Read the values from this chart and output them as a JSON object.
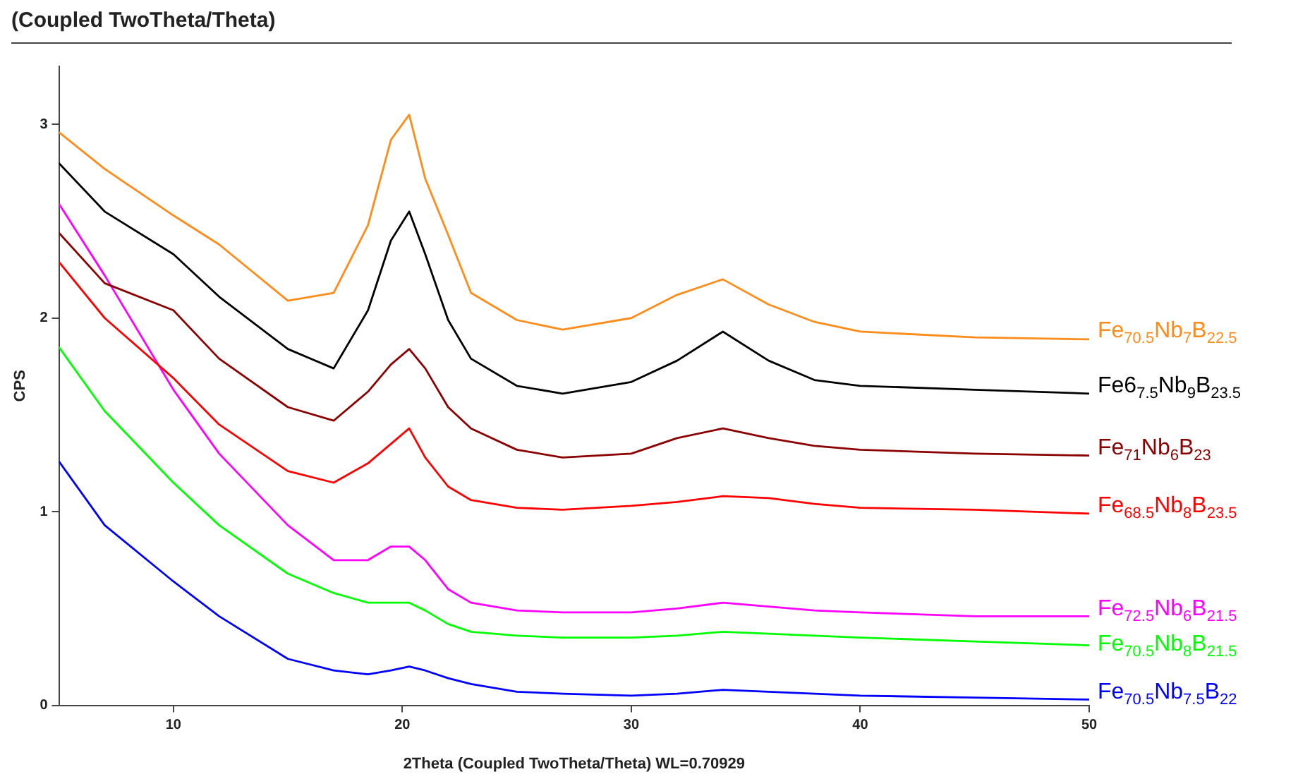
{
  "chart_data": {
    "type": "line",
    "title": "(Coupled TwoTheta/Theta)",
    "xlabel": "2Theta (Coupled TwoTheta/Theta) WL=0.70929",
    "ylabel": "CPS",
    "x": [
      5,
      7,
      10,
      12,
      15,
      17,
      18.5,
      19.5,
      20.3,
      21,
      22,
      23,
      25,
      27,
      30,
      32,
      34,
      36,
      38,
      40,
      45,
      50
    ],
    "xlim": [
      5,
      50
    ],
    "xticks": [
      10,
      20,
      30,
      40,
      50
    ],
    "ylim": [
      0,
      3.3
    ],
    "yticks": [
      0,
      1,
      2,
      3
    ],
    "marker": "none",
    "line_style": "solid",
    "series": [
      {
        "name": "Fe$_{70.5}$Nb$_{7}$B$_{22.5}$",
        "color": "#ff8c1a",
        "values": [
          2.96,
          2.77,
          2.53,
          2.38,
          2.09,
          2.13,
          2.48,
          2.92,
          3.05,
          2.72,
          2.43,
          2.13,
          1.99,
          1.94,
          2.0,
          2.12,
          2.2,
          2.07,
          1.98,
          1.93,
          1.9,
          1.89
        ]
      },
      {
        "name": "Fe6$_{7.5}$Nb$_{9}$B$_{23.5}$",
        "color": "#000000",
        "values": [
          2.8,
          2.55,
          2.33,
          2.11,
          1.84,
          1.74,
          2.04,
          2.4,
          2.55,
          2.33,
          1.99,
          1.79,
          1.65,
          1.61,
          1.67,
          1.78,
          1.93,
          1.78,
          1.68,
          1.65,
          1.63,
          1.61
        ]
      },
      {
        "name": "Fe$_{71}$Nb$_{6}$B$_{23}$",
        "color": "#8b0000",
        "values": [
          2.44,
          2.18,
          2.04,
          1.79,
          1.54,
          1.47,
          1.62,
          1.76,
          1.84,
          1.74,
          1.54,
          1.43,
          1.32,
          1.28,
          1.3,
          1.38,
          1.43,
          1.38,
          1.34,
          1.32,
          1.3,
          1.29
        ]
      },
      {
        "name": "Fe$_{68.5}$Nb$_{8}$B$_{23.5}$",
        "color": "#ff0000",
        "values": [
          2.29,
          2.0,
          1.69,
          1.45,
          1.21,
          1.15,
          1.25,
          1.35,
          1.43,
          1.28,
          1.13,
          1.06,
          1.02,
          1.01,
          1.03,
          1.05,
          1.08,
          1.07,
          1.04,
          1.02,
          1.01,
          0.99
        ]
      },
      {
        "name": "Fe$_{72.5}$Nb$_{6}$B$_{21.5}$",
        "color": "#ff00ff",
        "values": [
          2.59,
          2.22,
          1.63,
          1.3,
          0.93,
          0.75,
          0.75,
          0.82,
          0.82,
          0.75,
          0.6,
          0.53,
          0.49,
          0.48,
          0.48,
          0.5,
          0.53,
          0.51,
          0.49,
          0.48,
          0.46,
          0.46
        ]
      },
      {
        "name": "Fe$_{70.5}$Nb$_{8}$B$_{21.5}$",
        "color": "#00ff00",
        "values": [
          1.85,
          1.52,
          1.15,
          0.93,
          0.68,
          0.58,
          0.53,
          0.53,
          0.53,
          0.49,
          0.42,
          0.38,
          0.36,
          0.35,
          0.35,
          0.36,
          0.38,
          0.37,
          0.36,
          0.35,
          0.33,
          0.31
        ]
      },
      {
        "name": "Fe$_{70.5}$Nb$_{7.5}$B$_{22}$",
        "color": "#0000ff",
        "values": [
          1.26,
          0.93,
          0.64,
          0.46,
          0.24,
          0.18,
          0.16,
          0.18,
          0.2,
          0.18,
          0.14,
          0.11,
          0.07,
          0.06,
          0.05,
          0.06,
          0.08,
          0.07,
          0.06,
          0.05,
          0.04,
          0.03
        ]
      }
    ]
  }
}
